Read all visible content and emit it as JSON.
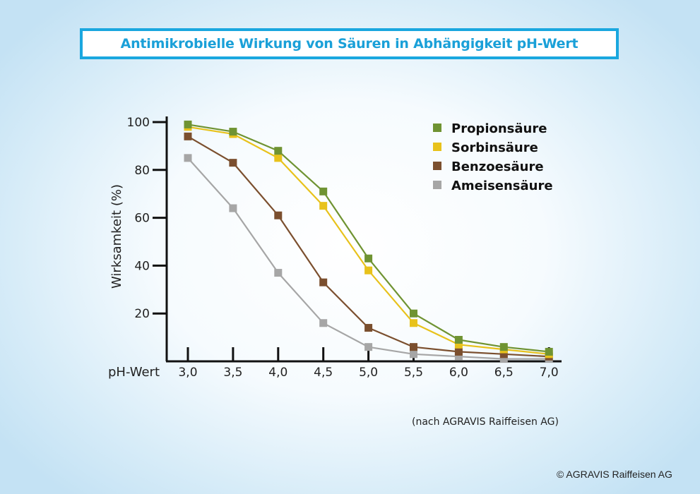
{
  "title": "Antimikrobielle Wirkung von Säuren in Abhängigkeit pH-Wert",
  "source_note": "(nach AGRAVIS Raiffeisen AG)",
  "copyright": "© AGRAVIS Raiffeisen AG",
  "chart_data": {
    "type": "line",
    "title": "Antimikrobielle Wirkung von Säuren in Abhängigkeit pH-Wert",
    "xlabel": "pH-Wert",
    "ylabel": "Wirksamkeit (%)",
    "categories": [
      "3,0",
      "3,5",
      "4,0",
      "4,5",
      "5,0",
      "5,5",
      "6,0",
      "6,5",
      "7,0"
    ],
    "x": [
      3.0,
      3.5,
      4.0,
      4.5,
      5.0,
      5.5,
      6.0,
      6.5,
      7.0
    ],
    "ylim": [
      0,
      100
    ],
    "yticks": [
      20,
      40,
      60,
      80,
      100
    ],
    "grid": false,
    "legend": "top-right",
    "series": [
      {
        "name": "Propionsäure",
        "color": "#6f9332",
        "values": [
          99,
          96,
          88,
          71,
          43,
          20,
          9,
          6,
          4
        ]
      },
      {
        "name": "Sorbinsäure",
        "color": "#e8c21b",
        "values": [
          98,
          95,
          85,
          65,
          38,
          16,
          7,
          5,
          3
        ]
      },
      {
        "name": "Benzoesäure",
        "color": "#7b4f2e",
        "values": [
          94,
          83,
          61,
          33,
          14,
          6,
          4,
          3,
          2
        ]
      },
      {
        "name": "Ameisensäure",
        "color": "#a6a6a6",
        "values": [
          85,
          64,
          37,
          16,
          6,
          3,
          2,
          1,
          1
        ]
      }
    ]
  }
}
